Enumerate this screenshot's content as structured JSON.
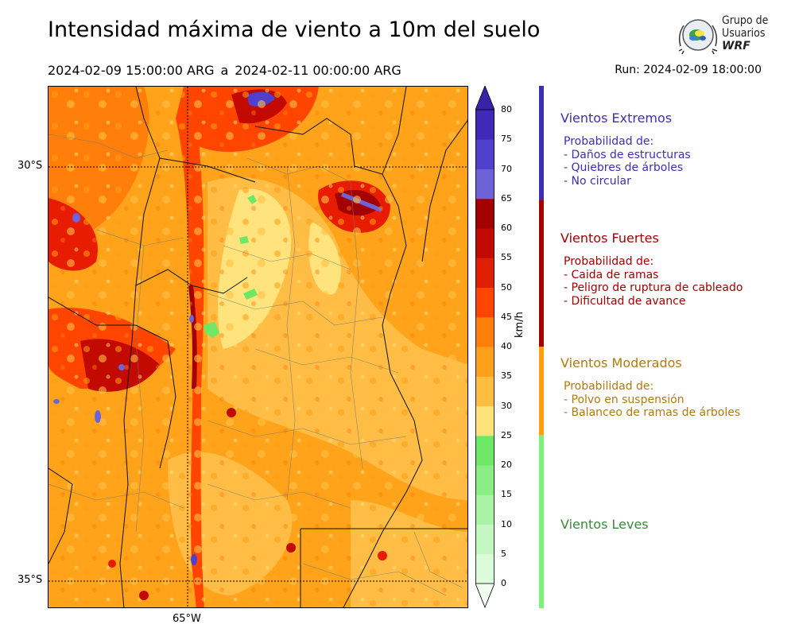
{
  "header": {
    "title": "Intensidad máxima de viento a 10m del suelo",
    "period_start": "2024-02-09 15:00:00 ARG",
    "period_sep": "a",
    "period_end": "2024-02-11 00:00:00 ARG",
    "run": "Run: 2024-02-09 18:00:00"
  },
  "logo": {
    "line1": "Grupo de",
    "line2": "Usuarios",
    "line3": "WRF"
  },
  "map": {
    "lat_labels": [
      "30°S",
      "35°S"
    ],
    "lon_labels": [
      "65°W"
    ],
    "unit": "km/h"
  },
  "colorbar": {
    "ticks": [
      "0",
      "5",
      "10",
      "15",
      "20",
      "25",
      "30",
      "35",
      "40",
      "45",
      "50",
      "55",
      "60",
      "65",
      "70",
      "75",
      "80"
    ],
    "colors": [
      "#f0fdf0",
      "#dbfbda",
      "#c4f7c1",
      "#a8f3a4",
      "#8bee85",
      "#6ee766",
      "#ffe27a",
      "#ffbd40",
      "#ffa01a",
      "#ff7f08",
      "#ff4500",
      "#e01e00",
      "#c20a00",
      "#a30000",
      "#6e62d8",
      "#5040cc",
      "#4028b8",
      "#3a22a8"
    ]
  },
  "categories": [
    {
      "title": "Vientos Extremos",
      "color": "#3f2fb0",
      "bar_color": "#3f2fb0",
      "lines": [
        "Probabilidad de:",
        "- Daños de estructuras",
        "- Quiebres de árboles",
        "- No circular"
      ]
    },
    {
      "title": "Vientos Fuertes",
      "color": "#a30000",
      "bar_color": "#a30000",
      "lines": [
        "Probabilidad de:",
        "- Caida de ramas",
        "- Peligro de ruptura de cableado",
        "- Dificultad de avance"
      ]
    },
    {
      "title": "Vientos Moderados",
      "color": "#b07a10",
      "bar_color": "#ff9f0c",
      "lines": [
        "Probabilidad de:",
        "- Polvo en suspensión",
        "- Balanceo de ramas de árboles"
      ]
    },
    {
      "title": "Vientos Leves",
      "color": "#3a8a3a",
      "bar_color": "#7ef07a",
      "lines": []
    }
  ]
}
